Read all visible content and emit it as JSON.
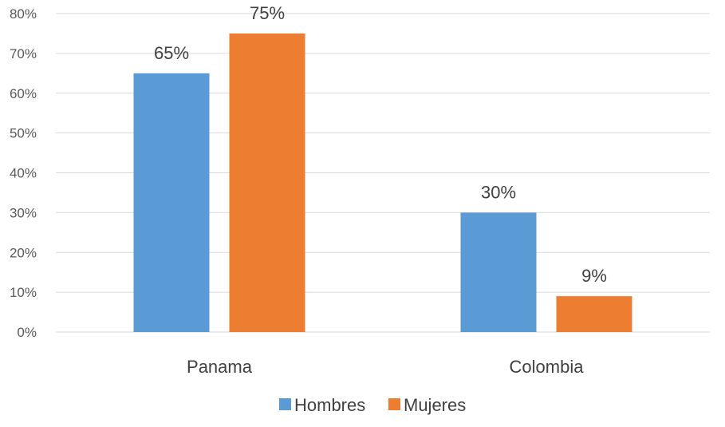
{
  "chart_data": {
    "type": "bar",
    "categories": [
      "Panama",
      "Colombia"
    ],
    "series": [
      {
        "name": "Hombres",
        "values": [
          65,
          30
        ],
        "labels": [
          "65%",
          "30%"
        ],
        "color": "#5b9bd5"
      },
      {
        "name": "Mujeres",
        "values": [
          75,
          9
        ],
        "labels": [
          "75%",
          "9%"
        ],
        "color": "#ed7d31"
      }
    ],
    "y_ticks": [
      "0%",
      "10%",
      "20%",
      "30%",
      "40%",
      "50%",
      "60%",
      "70%",
      "80%"
    ],
    "ylim": [
      0,
      80
    ],
    "y_unit": "%",
    "grid": true,
    "legend_position": "bottom"
  }
}
